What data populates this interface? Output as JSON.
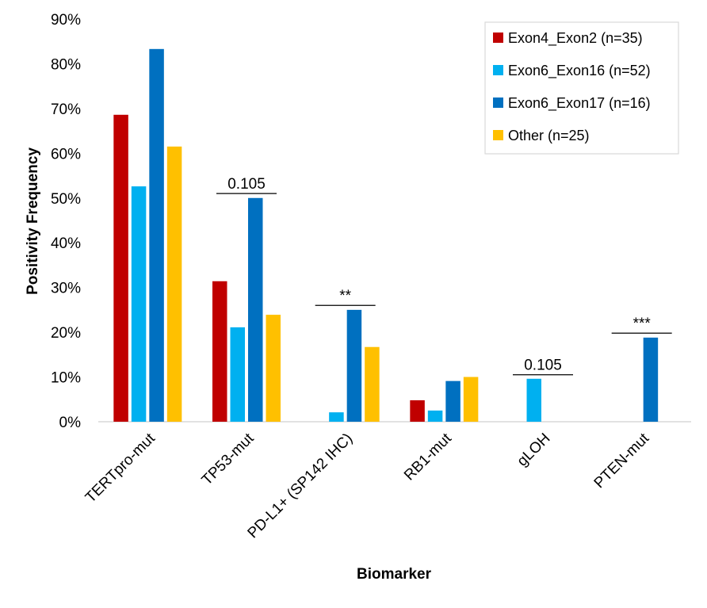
{
  "chart_data": {
    "type": "bar",
    "categories": [
      "TERTpro-mut",
      "TP53-mut",
      "PD-L1+ (SP142 IHC)",
      "RB1-mut",
      "gLOH",
      "PTEN-mut"
    ],
    "series": [
      {
        "name": "Exon4_Exon2 (n=35)",
        "color": "#C00000",
        "values": [
          68.6,
          31.4,
          0,
          4.8,
          0,
          0
        ]
      },
      {
        "name": "Exon6_Exon16 (n=52)",
        "color": "#00B0F0",
        "values": [
          52.6,
          21.1,
          2.1,
          2.5,
          9.6,
          0
        ]
      },
      {
        "name": "Exon6_Exon17 (n=16)",
        "color": "#0070C0",
        "values": [
          83.3,
          50.0,
          25.0,
          9.1,
          0,
          18.8
        ]
      },
      {
        "name": "Other (n=25)",
        "color": "#FFC000",
        "values": [
          61.5,
          23.9,
          16.7,
          10.0,
          0,
          0
        ]
      }
    ],
    "yticks": [
      "0%",
      "10%",
      "20%",
      "30%",
      "40%",
      "50%",
      "60%",
      "70%",
      "80%",
      "90%"
    ],
    "ylim": [
      0,
      90
    ],
    "xlabel": "Biomarker",
    "ylabel": "Positivity Frequency",
    "legend_position": "top-right",
    "annotations": [
      {
        "category": 1,
        "text": "0.105",
        "y": 51
      },
      {
        "category": 2,
        "text": "**",
        "y": 26
      },
      {
        "category": 4,
        "text": "0.105",
        "y": 10.5
      },
      {
        "category": 5,
        "text": "***",
        "y": 19.8
      }
    ]
  }
}
